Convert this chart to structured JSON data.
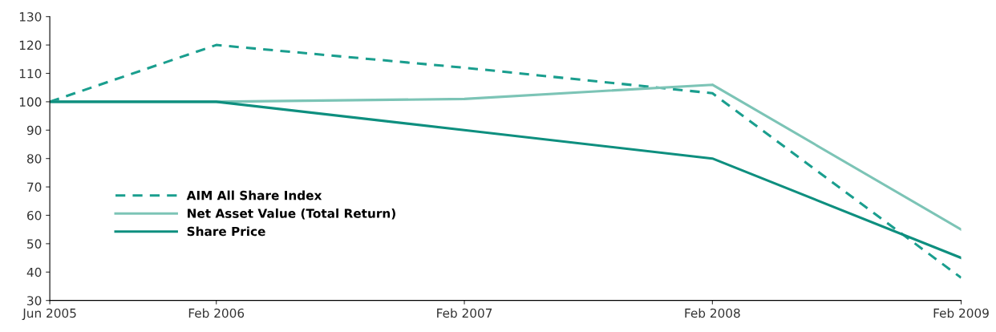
{
  "chart_data": {
    "type": "line",
    "x": [
      "2005-06",
      "2006-02",
      "2007-02",
      "2008-02",
      "2009-02"
    ],
    "series": [
      {
        "name": "AIM All Share Index",
        "color": "#1a9e8e",
        "line_style": "dashed",
        "values": [
          100,
          120,
          112,
          103,
          38
        ]
      },
      {
        "name": "Net Asset Value (Total Return)",
        "color": "#7cc4b6",
        "line_style": "solid",
        "values": [
          100,
          100,
          101,
          106,
          55
        ]
      },
      {
        "name": "Share Price",
        "color": "#0e8f7f",
        "line_style": "solid",
        "values": [
          100,
          100,
          90,
          80,
          45
        ]
      }
    ],
    "xlim": [
      "2005-06",
      "2009-02"
    ],
    "xticks": [
      {
        "value": "2005-06",
        "label": "Jun 2005"
      },
      {
        "value": "2006-02",
        "label": "Feb 2006"
      },
      {
        "value": "2007-02",
        "label": "Feb 2007"
      },
      {
        "value": "2008-02",
        "label": "Feb 2008"
      },
      {
        "value": "2009-02",
        "label": "Feb 2009"
      }
    ],
    "ylim": [
      30,
      130
    ],
    "yticks": [
      30,
      40,
      50,
      60,
      70,
      80,
      90,
      100,
      110,
      120,
      130
    ],
    "grid": false,
    "legend": "bottom left"
  }
}
